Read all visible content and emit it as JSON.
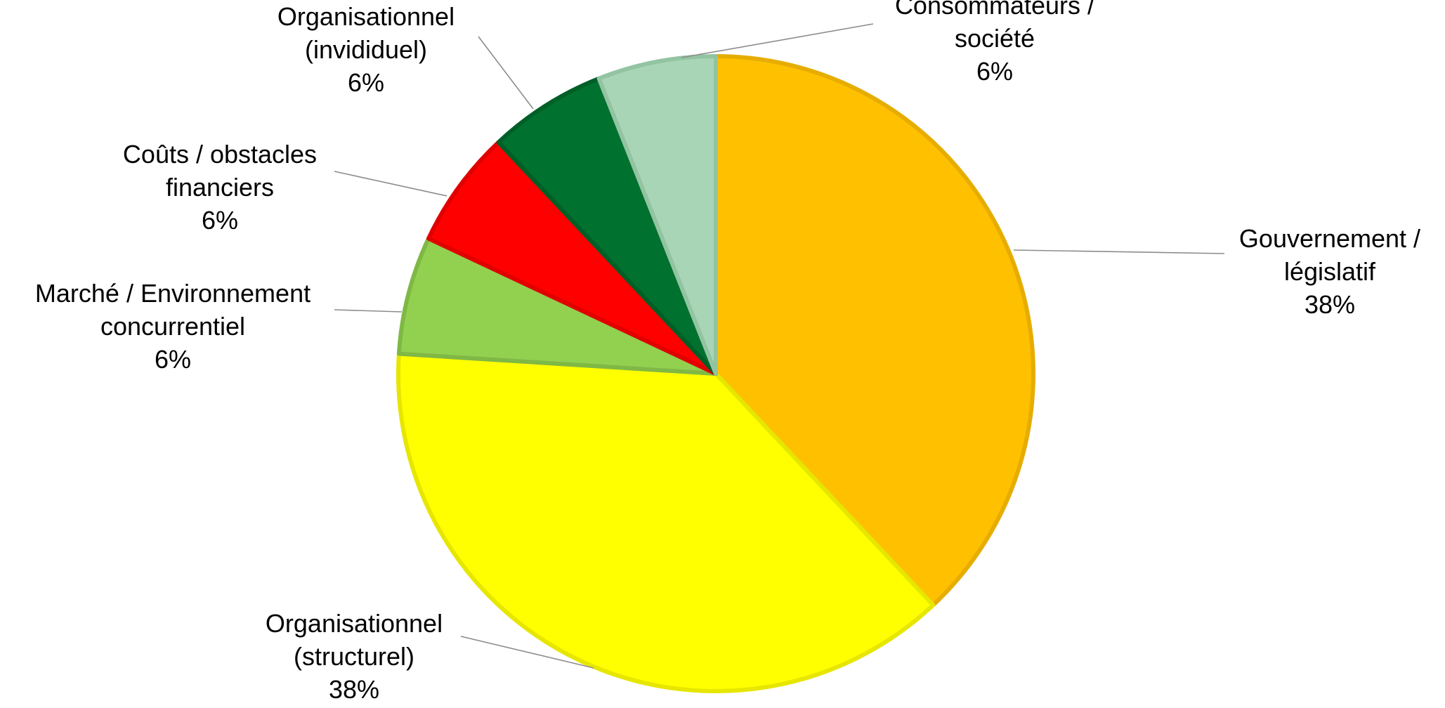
{
  "chart_data": {
    "type": "pie",
    "start_angle_deg": 0,
    "direction": "clockwise",
    "slices": [
      {
        "label_lines": [
          "Gouvernement /",
          "législatif"
        ],
        "percent_label": "38%",
        "value": 38,
        "color": "#FFC000",
        "edge_color": "#E6AD00"
      },
      {
        "label_lines": [
          "Organisationnel",
          "(structurel)"
        ],
        "percent_label": "38%",
        "value": 38,
        "color": "#FFFF00",
        "edge_color": "#E6E600"
      },
      {
        "label_lines": [
          "Marché / Environnement",
          "concurrentiel"
        ],
        "percent_label": "6%",
        "value": 6,
        "color": "#92D050",
        "edge_color": "#7FB845"
      },
      {
        "label_lines": [
          "Coûts / obstacles",
          "financiers"
        ],
        "percent_label": "6%",
        "value": 6,
        "color": "#FF0000",
        "edge_color": "#E00000"
      },
      {
        "label_lines": [
          "Organisationnel",
          "(invididuel)"
        ],
        "percent_label": "6%",
        "value": 6,
        "color": "#00712F",
        "edge_color": "#005F27"
      },
      {
        "label_lines": [
          "Consommateurs /",
          "société"
        ],
        "percent_label": "6%",
        "value": 6,
        "color": "#A8D5B5",
        "edge_color": "#93C4A2"
      }
    ]
  }
}
